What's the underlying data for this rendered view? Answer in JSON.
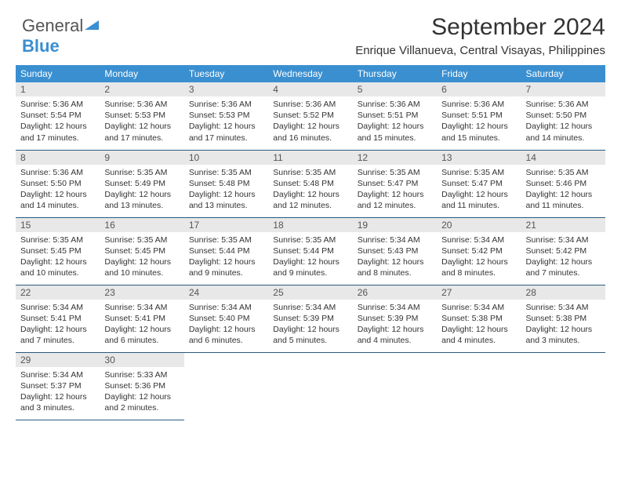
{
  "logo": {
    "part1": "General",
    "part2": "Blue"
  },
  "header": {
    "title": "September 2024",
    "subtitle": "Enrique Villanueva, Central Visayas, Philippines"
  },
  "colors": {
    "header_bg": "#3a8fd0",
    "header_text": "#ffffff",
    "daynum_bg": "#e8e8e8",
    "row_border": "#2a5a80"
  },
  "weekdays": [
    "Sunday",
    "Monday",
    "Tuesday",
    "Wednesday",
    "Thursday",
    "Friday",
    "Saturday"
  ],
  "weeks": [
    [
      {
        "n": "1",
        "sr": "5:36 AM",
        "ss": "5:54 PM",
        "dl": "12 hours and 17 minutes."
      },
      {
        "n": "2",
        "sr": "5:36 AM",
        "ss": "5:53 PM",
        "dl": "12 hours and 17 minutes."
      },
      {
        "n": "3",
        "sr": "5:36 AM",
        "ss": "5:53 PM",
        "dl": "12 hours and 17 minutes."
      },
      {
        "n": "4",
        "sr": "5:36 AM",
        "ss": "5:52 PM",
        "dl": "12 hours and 16 minutes."
      },
      {
        "n": "5",
        "sr": "5:36 AM",
        "ss": "5:51 PM",
        "dl": "12 hours and 15 minutes."
      },
      {
        "n": "6",
        "sr": "5:36 AM",
        "ss": "5:51 PM",
        "dl": "12 hours and 15 minutes."
      },
      {
        "n": "7",
        "sr": "5:36 AM",
        "ss": "5:50 PM",
        "dl": "12 hours and 14 minutes."
      }
    ],
    [
      {
        "n": "8",
        "sr": "5:36 AM",
        "ss": "5:50 PM",
        "dl": "12 hours and 14 minutes."
      },
      {
        "n": "9",
        "sr": "5:35 AM",
        "ss": "5:49 PM",
        "dl": "12 hours and 13 minutes."
      },
      {
        "n": "10",
        "sr": "5:35 AM",
        "ss": "5:48 PM",
        "dl": "12 hours and 13 minutes."
      },
      {
        "n": "11",
        "sr": "5:35 AM",
        "ss": "5:48 PM",
        "dl": "12 hours and 12 minutes."
      },
      {
        "n": "12",
        "sr": "5:35 AM",
        "ss": "5:47 PM",
        "dl": "12 hours and 12 minutes."
      },
      {
        "n": "13",
        "sr": "5:35 AM",
        "ss": "5:47 PM",
        "dl": "12 hours and 11 minutes."
      },
      {
        "n": "14",
        "sr": "5:35 AM",
        "ss": "5:46 PM",
        "dl": "12 hours and 11 minutes."
      }
    ],
    [
      {
        "n": "15",
        "sr": "5:35 AM",
        "ss": "5:45 PM",
        "dl": "12 hours and 10 minutes."
      },
      {
        "n": "16",
        "sr": "5:35 AM",
        "ss": "5:45 PM",
        "dl": "12 hours and 10 minutes."
      },
      {
        "n": "17",
        "sr": "5:35 AM",
        "ss": "5:44 PM",
        "dl": "12 hours and 9 minutes."
      },
      {
        "n": "18",
        "sr": "5:35 AM",
        "ss": "5:44 PM",
        "dl": "12 hours and 9 minutes."
      },
      {
        "n": "19",
        "sr": "5:34 AM",
        "ss": "5:43 PM",
        "dl": "12 hours and 8 minutes."
      },
      {
        "n": "20",
        "sr": "5:34 AM",
        "ss": "5:42 PM",
        "dl": "12 hours and 8 minutes."
      },
      {
        "n": "21",
        "sr": "5:34 AM",
        "ss": "5:42 PM",
        "dl": "12 hours and 7 minutes."
      }
    ],
    [
      {
        "n": "22",
        "sr": "5:34 AM",
        "ss": "5:41 PM",
        "dl": "12 hours and 7 minutes."
      },
      {
        "n": "23",
        "sr": "5:34 AM",
        "ss": "5:41 PM",
        "dl": "12 hours and 6 minutes."
      },
      {
        "n": "24",
        "sr": "5:34 AM",
        "ss": "5:40 PM",
        "dl": "12 hours and 6 minutes."
      },
      {
        "n": "25",
        "sr": "5:34 AM",
        "ss": "5:39 PM",
        "dl": "12 hours and 5 minutes."
      },
      {
        "n": "26",
        "sr": "5:34 AM",
        "ss": "5:39 PM",
        "dl": "12 hours and 4 minutes."
      },
      {
        "n": "27",
        "sr": "5:34 AM",
        "ss": "5:38 PM",
        "dl": "12 hours and 4 minutes."
      },
      {
        "n": "28",
        "sr": "5:34 AM",
        "ss": "5:38 PM",
        "dl": "12 hours and 3 minutes."
      }
    ],
    [
      {
        "n": "29",
        "sr": "5:34 AM",
        "ss": "5:37 PM",
        "dl": "12 hours and 3 minutes."
      },
      {
        "n": "30",
        "sr": "5:33 AM",
        "ss": "5:36 PM",
        "dl": "12 hours and 2 minutes."
      },
      null,
      null,
      null,
      null,
      null
    ]
  ],
  "labels": {
    "sunrise": "Sunrise: ",
    "sunset": "Sunset: ",
    "daylight": "Daylight: "
  }
}
